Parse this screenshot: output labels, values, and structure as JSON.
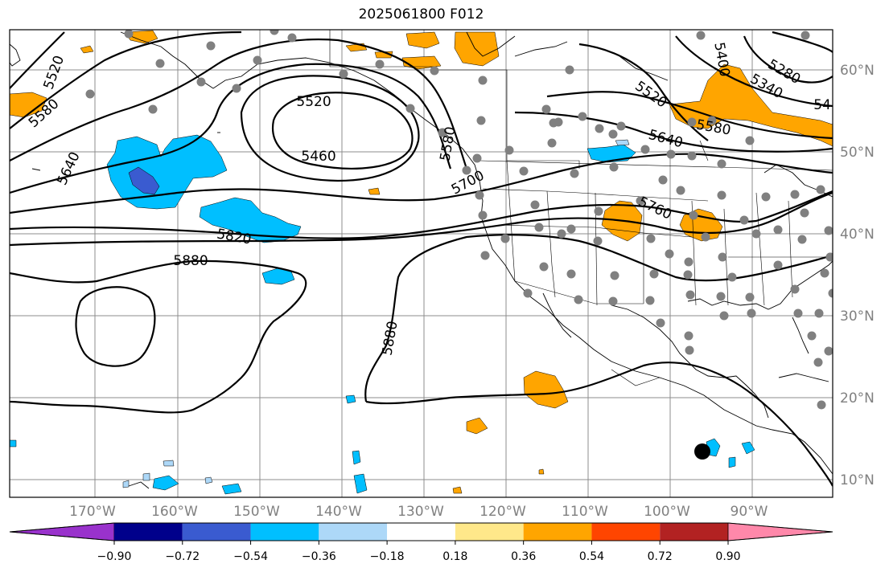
{
  "title": "2025061800 F012",
  "map": {
    "lon_labels": [
      "170°W",
      "160°W",
      "150°W",
      "140°W",
      "130°W",
      "120°W",
      "110°W",
      "100°W",
      "90°W"
    ],
    "lat_labels": [
      "60°N",
      "50°N",
      "40°N",
      "30°N",
      "20°N",
      "10°N"
    ],
    "contour_labels": [
      "5520",
      "5580",
      "5640",
      "5520",
      "5460",
      "5580",
      "5700",
      "5820",
      "5880",
      "5880",
      "5520",
      "5640",
      "5580",
      "5760",
      "5280",
      "5340",
      "5400",
      "54"
    ],
    "colors": {
      "positive_mid": "#ffa500",
      "negative_mid": "#00bfff",
      "negative_strong": "#3a5bd0",
      "grid": "#8c8c8c",
      "station_dot": "#808080"
    }
  },
  "colorbar": {
    "colors": [
      "#9932cc",
      "#00008b",
      "#3a5bd0",
      "#00bfff",
      "#add8f8",
      "#ffffff",
      "#ffe88a",
      "#ffa500",
      "#ff4500",
      "#b22222",
      "#ff88aa"
    ],
    "tick_labels": [
      "−0.90",
      "−0.72",
      "−0.54",
      "−0.36",
      "−0.18",
      "0.18",
      "0.36",
      "0.54",
      "0.72",
      "0.90"
    ]
  }
}
